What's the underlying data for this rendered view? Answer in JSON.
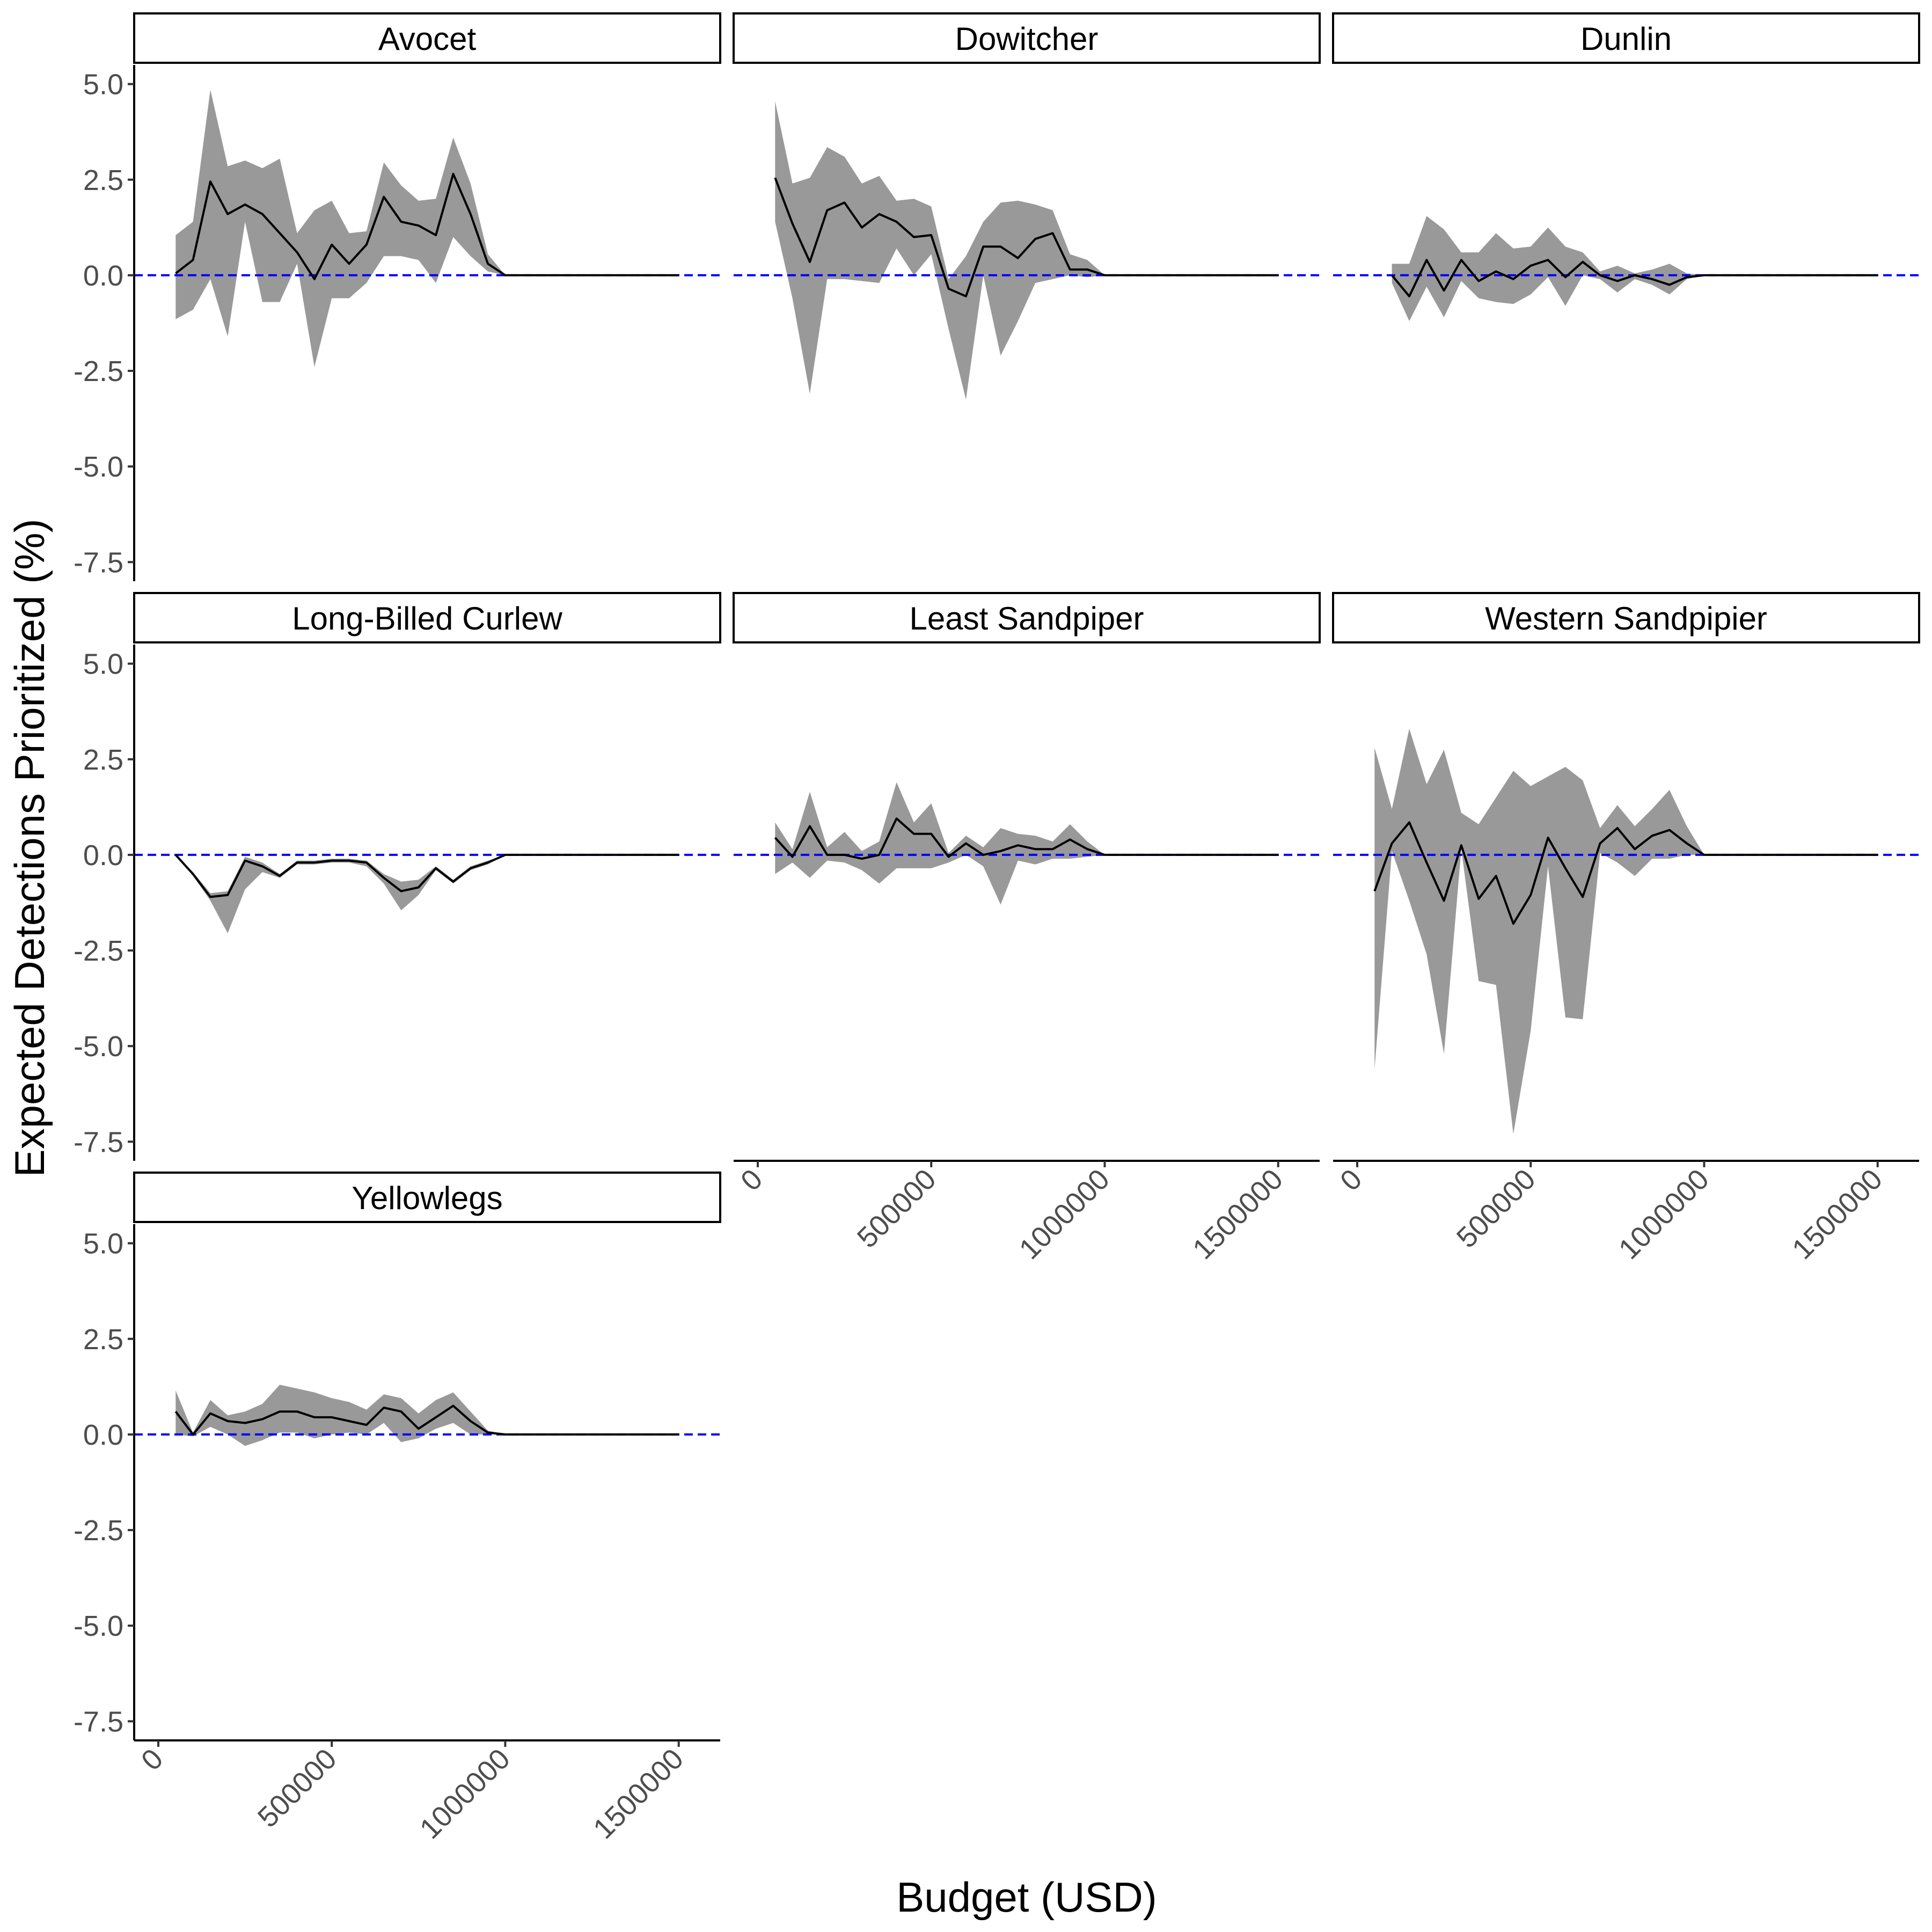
{
  "chart_data": {
    "type": "area",
    "facets": [
      "Avocet",
      "Dowitcher",
      "Dunlin",
      "Long-Billed Curlew",
      "Least Sandpiper",
      "Western Sandpipier",
      "Yellowlegs"
    ],
    "xlabel": "Budget (USD)",
    "ylabel": "Expected Detections Prioritized (%)",
    "xlim": [
      0,
      1550000
    ],
    "ylim": [
      -8.0,
      5.5
    ],
    "x_ticks": [
      0,
      500000,
      1000000,
      1500000
    ],
    "x_tick_labels": [
      "0",
      "500000",
      "1000000",
      "1500000"
    ],
    "y_ticks": [
      5.0,
      2.5,
      0.0,
      -2.5,
      -5.0,
      -7.5
    ],
    "y_tick_labels": [
      "5.0",
      "2.5",
      "0.0",
      "-2.5",
      "-5.0",
      "-7.5"
    ],
    "reference_line": {
      "y": 0,
      "style": "dashed",
      "color": "#0000ff"
    },
    "line_color": "#000000",
    "ribbon_color": "#999999",
    "grid": false,
    "legend": "none",
    "x": [
      50000,
      100000,
      150000,
      200000,
      250000,
      300000,
      350000,
      400000,
      450000,
      500000,
      550000,
      600000,
      650000,
      700000,
      750000,
      800000,
      850000,
      900000,
      950000,
      1000000,
      1050000,
      1100000,
      1150000,
      1200000,
      1250000,
      1300000,
      1350000,
      1400000,
      1450000,
      1500000
    ],
    "series": [
      {
        "name": "Avocet",
        "mean": [
          0.05,
          0.4,
          2.45,
          1.6,
          1.85,
          1.6,
          1.1,
          0.6,
          -0.1,
          0.8,
          0.3,
          0.8,
          2.05,
          1.4,
          1.3,
          1.05,
          2.65,
          1.6,
          0.3,
          0,
          0,
          0,
          0,
          0,
          0,
          0,
          0,
          0,
          0,
          0
        ],
        "lower": [
          -1.15,
          -0.9,
          -0.1,
          -1.6,
          1.4,
          -0.7,
          -0.7,
          0.3,
          -2.4,
          -0.6,
          -0.6,
          -0.2,
          0.5,
          0.5,
          0.4,
          -0.2,
          1.0,
          0.5,
          0.1,
          0,
          0,
          0,
          0,
          0,
          0,
          0,
          0,
          0,
          0,
          0
        ],
        "upper": [
          1.05,
          1.4,
          4.85,
          2.85,
          3.0,
          2.8,
          3.05,
          1.1,
          1.7,
          1.95,
          1.1,
          1.15,
          2.95,
          2.35,
          1.95,
          2.0,
          3.6,
          2.4,
          0.55,
          0,
          0,
          0,
          0,
          0,
          0,
          0,
          0,
          0,
          0,
          0
        ]
      },
      {
        "name": "Dowitcher",
        "mean": [
          2.55,
          1.35,
          0.35,
          1.7,
          1.9,
          1.25,
          1.6,
          1.4,
          1.0,
          1.05,
          -0.35,
          -0.55,
          0.75,
          0.75,
          0.45,
          0.95,
          1.1,
          0.15,
          0.15,
          0,
          0,
          0,
          0,
          0,
          0,
          0,
          0,
          0,
          0,
          0
        ],
        "lower": [
          1.4,
          -0.6,
          -3.1,
          -0.1,
          -0.1,
          -0.15,
          -0.2,
          0.7,
          0.0,
          0.55,
          -1.4,
          -3.25,
          0.0,
          -2.1,
          -1.2,
          -0.2,
          -0.1,
          0.0,
          -0.05,
          0,
          0,
          0,
          0,
          0,
          0,
          0,
          0,
          0,
          0,
          0
        ],
        "upper": [
          4.55,
          2.4,
          2.55,
          3.35,
          3.1,
          2.4,
          2.6,
          1.95,
          2.0,
          1.8,
          -0.1,
          0.5,
          1.4,
          1.9,
          1.95,
          1.85,
          1.7,
          0.55,
          0.4,
          0,
          0,
          0,
          0,
          0,
          0,
          0,
          0,
          0,
          0,
          0
        ]
      },
      {
        "name": "Dunlin",
        "mean": [
          0,
          0,
          -0.55,
          0.4,
          -0.4,
          0.4,
          -0.15,
          0.1,
          -0.1,
          0.25,
          0.4,
          -0.05,
          0.35,
          0.0,
          -0.15,
          0.0,
          -0.1,
          -0.25,
          -0.05,
          0,
          0,
          0,
          0,
          0,
          0,
          0,
          0,
          0,
          0,
          0
        ],
        "lower": [
          0,
          -0.2,
          -1.2,
          -0.3,
          -1.1,
          -0.15,
          -0.6,
          -0.7,
          -0.75,
          -0.5,
          -0.05,
          -0.8,
          0.0,
          -0.1,
          -0.45,
          -0.1,
          -0.25,
          -0.5,
          -0.1,
          0,
          0,
          0,
          0,
          0,
          0,
          0,
          0,
          0,
          0,
          0
        ],
        "upper": [
          0,
          0.3,
          0.3,
          1.55,
          1.2,
          0.6,
          0.6,
          1.1,
          0.7,
          0.75,
          1.25,
          0.75,
          0.6,
          0.1,
          0.25,
          0.05,
          0.15,
          0.3,
          0.05,
          0,
          0,
          0,
          0,
          0,
          0,
          0,
          0,
          0,
          0,
          0
        ],
        "start_index": 1
      },
      {
        "name": "Long-Billed Curlew",
        "mean": [
          0,
          -0.5,
          -1.1,
          -1.05,
          -0.15,
          -0.3,
          -0.55,
          -0.2,
          -0.2,
          -0.15,
          -0.15,
          -0.2,
          -0.6,
          -0.95,
          -0.85,
          -0.35,
          -0.7,
          -0.35,
          -0.2,
          0,
          0,
          0,
          0,
          0,
          0,
          0,
          0,
          0,
          0,
          0
        ],
        "lower": [
          0,
          -0.55,
          -1.2,
          -2.05,
          -0.9,
          -0.45,
          -0.6,
          -0.25,
          -0.25,
          -0.2,
          -0.2,
          -0.3,
          -0.75,
          -1.45,
          -1.05,
          -0.4,
          -0.75,
          -0.4,
          -0.25,
          0,
          0,
          0,
          0,
          0,
          0,
          0,
          0,
          0,
          0,
          0
        ],
        "upper": [
          0,
          -0.45,
          -1.0,
          -0.95,
          -0.05,
          -0.2,
          -0.5,
          -0.15,
          -0.15,
          -0.1,
          -0.1,
          -0.15,
          -0.5,
          -0.7,
          -0.65,
          -0.3,
          -0.65,
          -0.3,
          -0.15,
          0,
          0,
          0,
          0,
          0,
          0,
          0,
          0,
          0,
          0,
          0
        ]
      },
      {
        "name": "Least Sandpiper",
        "mean": [
          0.45,
          -0.05,
          0.75,
          0.0,
          0.0,
          -0.1,
          0.0,
          0.95,
          0.55,
          0.55,
          -0.05,
          0.3,
          0.0,
          0.1,
          0.25,
          0.15,
          0.15,
          0.4,
          0.15,
          0,
          0,
          0,
          0,
          0,
          0,
          0,
          0,
          0,
          0,
          0
        ],
        "lower": [
          -0.5,
          -0.2,
          -0.6,
          -0.15,
          -0.2,
          -0.4,
          -0.75,
          -0.35,
          -0.35,
          -0.35,
          -0.2,
          0.0,
          -0.3,
          -1.3,
          -0.15,
          -0.25,
          -0.1,
          -0.1,
          -0.05,
          0,
          0,
          0,
          0,
          0,
          0,
          0,
          0,
          0,
          0,
          0
        ],
        "upper": [
          0.85,
          0.15,
          1.65,
          0.2,
          0.6,
          0.1,
          0.35,
          1.9,
          0.85,
          1.35,
          0.05,
          0.5,
          0.2,
          0.7,
          0.55,
          0.5,
          0.35,
          0.8,
          0.35,
          0,
          0,
          0,
          0,
          0,
          0,
          0,
          0,
          0,
          0,
          0
        ]
      },
      {
        "name": "Western Sandpipier",
        "mean": [
          -0.95,
          0.3,
          0.85,
          -0.2,
          -1.2,
          0.25,
          -1.15,
          -0.55,
          -1.8,
          -1.05,
          0.45,
          -0.35,
          -1.1,
          0.3,
          0.7,
          0.15,
          0.5,
          0.65,
          0.3,
          0,
          0,
          0,
          0,
          0,
          0,
          0,
          0,
          0,
          0,
          0
        ],
        "lower": [
          -5.6,
          0.1,
          -1.2,
          -2.6,
          -5.2,
          0.15,
          -3.3,
          -3.4,
          -7.3,
          -4.6,
          -0.3,
          -4.25,
          -4.3,
          0.05,
          -0.2,
          -0.55,
          -0.1,
          -0.1,
          0.0,
          0,
          0,
          0,
          0,
          0,
          0,
          0,
          0,
          0,
          0,
          0
        ],
        "upper": [
          2.8,
          1.2,
          3.3,
          1.85,
          2.75,
          1.1,
          0.8,
          1.5,
          2.2,
          1.8,
          2.05,
          2.3,
          1.95,
          0.7,
          1.3,
          0.75,
          1.2,
          1.7,
          0.75,
          0,
          0,
          0,
          0,
          0,
          0,
          0,
          0,
          0,
          0,
          0
        ]
      },
      {
        "name": "Yellowlegs",
        "mean": [
          0.6,
          0.0,
          0.55,
          0.35,
          0.3,
          0.4,
          0.6,
          0.6,
          0.45,
          0.45,
          0.35,
          0.25,
          0.7,
          0.6,
          0.15,
          0.45,
          0.75,
          0.35,
          0.05,
          0,
          0,
          0,
          0,
          0,
          0,
          0,
          0,
          0,
          0,
          0
        ],
        "lower": [
          0.0,
          -0.05,
          0.2,
          0.0,
          -0.3,
          -0.15,
          0.05,
          0.05,
          -0.1,
          0.0,
          0.05,
          0.0,
          0.3,
          -0.2,
          -0.1,
          0.15,
          0.3,
          0.0,
          0.0,
          0,
          0,
          0,
          0,
          0,
          0,
          0,
          0,
          0,
          0,
          0
        ],
        "upper": [
          1.15,
          0.05,
          0.9,
          0.5,
          0.6,
          0.8,
          1.3,
          1.2,
          1.1,
          0.95,
          0.85,
          0.65,
          1.05,
          0.95,
          0.55,
          0.9,
          1.1,
          0.6,
          0.1,
          0,
          0,
          0,
          0,
          0,
          0,
          0,
          0,
          0,
          0,
          0
        ]
      }
    ]
  }
}
